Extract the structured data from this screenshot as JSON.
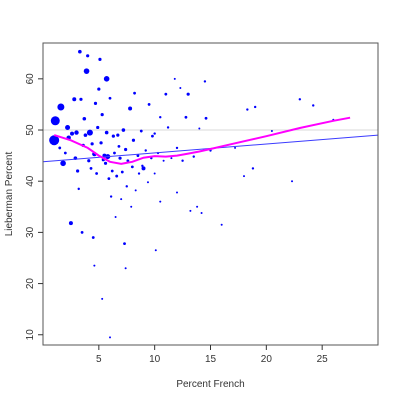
{
  "chart_data": {
    "type": "scatter",
    "xlabel": "Percent French",
    "ylabel": "Lieberman Percent",
    "xlim": [
      0,
      30
    ],
    "ylim": [
      8,
      67
    ],
    "x_ticks": [
      5,
      10,
      15,
      20,
      25
    ],
    "y_ticks": [
      10,
      20,
      30,
      40,
      50,
      60
    ],
    "x_tick_labels": [
      "5",
      "10",
      "15",
      "20",
      "25"
    ],
    "y_tick_labels": [
      "10",
      "20",
      "30",
      "40",
      "50",
      "60"
    ],
    "grid": false,
    "reference_line": {
      "y": 50,
      "color": "#d9d9d9"
    },
    "colors": {
      "points": "#0000ff",
      "regression": "#3b3bff",
      "smooth": "#ff00ff",
      "frame": "#555555"
    },
    "points": [
      {
        "x": 1.0,
        "y": 48.0,
        "w": 5.0
      },
      {
        "x": 1.1,
        "y": 51.8,
        "w": 4.5
      },
      {
        "x": 1.6,
        "y": 54.5,
        "w": 3.5
      },
      {
        "x": 1.8,
        "y": 43.5,
        "w": 2.8
      },
      {
        "x": 2.2,
        "y": 50.5,
        "w": 2.5
      },
      {
        "x": 2.3,
        "y": 48.5,
        "w": 2.2
      },
      {
        "x": 2.5,
        "y": 31.8,
        "w": 2.0
      },
      {
        "x": 2.6,
        "y": 49.3,
        "w": 2.0
      },
      {
        "x": 2.8,
        "y": 56.0,
        "w": 2.0
      },
      {
        "x": 2.9,
        "y": 44.5,
        "w": 1.8
      },
      {
        "x": 3.0,
        "y": 49.5,
        "w": 2.2
      },
      {
        "x": 3.1,
        "y": 42.0,
        "w": 1.6
      },
      {
        "x": 3.3,
        "y": 65.3,
        "w": 1.8
      },
      {
        "x": 3.4,
        "y": 56.0,
        "w": 1.6
      },
      {
        "x": 3.5,
        "y": 30.0,
        "w": 1.4
      },
      {
        "x": 3.6,
        "y": 47.0,
        "w": 1.6
      },
      {
        "x": 3.7,
        "y": 52.2,
        "w": 1.8
      },
      {
        "x": 3.8,
        "y": 49.0,
        "w": 1.8
      },
      {
        "x": 3.9,
        "y": 61.5,
        "w": 2.8
      },
      {
        "x": 4.0,
        "y": 64.5,
        "w": 1.6
      },
      {
        "x": 4.1,
        "y": 44.0,
        "w": 1.6
      },
      {
        "x": 4.2,
        "y": 49.5,
        "w": 3.0
      },
      {
        "x": 4.3,
        "y": 42.5,
        "w": 1.4
      },
      {
        "x": 4.4,
        "y": 47.3,
        "w": 1.6
      },
      {
        "x": 4.5,
        "y": 29.0,
        "w": 1.4
      },
      {
        "x": 4.6,
        "y": 45.3,
        "w": 2.2
      },
      {
        "x": 4.7,
        "y": 55.2,
        "w": 1.6
      },
      {
        "x": 4.8,
        "y": 41.5,
        "w": 1.4
      },
      {
        "x": 4.9,
        "y": 50.5,
        "w": 1.6
      },
      {
        "x": 5.0,
        "y": 58.0,
        "w": 1.6
      },
      {
        "x": 5.1,
        "y": 63.8,
        "w": 1.6
      },
      {
        "x": 5.2,
        "y": 47.5,
        "w": 1.6
      },
      {
        "x": 5.3,
        "y": 53.0,
        "w": 1.6
      },
      {
        "x": 5.4,
        "y": 44.2,
        "w": 1.6
      },
      {
        "x": 5.5,
        "y": 45.0,
        "w": 2.0
      },
      {
        "x": 5.6,
        "y": 43.5,
        "w": 1.6
      },
      {
        "x": 5.7,
        "y": 60.0,
        "w": 2.8
      },
      {
        "x": 5.7,
        "y": 49.5,
        "w": 1.8
      },
      {
        "x": 5.8,
        "y": 44.8,
        "w": 2.5
      },
      {
        "x": 5.9,
        "y": 40.5,
        "w": 1.4
      },
      {
        "x": 6.0,
        "y": 56.2,
        "w": 1.4
      },
      {
        "x": 6.1,
        "y": 37.0,
        "w": 1.2
      },
      {
        "x": 6.2,
        "y": 42.0,
        "w": 1.4
      },
      {
        "x": 6.3,
        "y": 48.8,
        "w": 1.6
      },
      {
        "x": 6.4,
        "y": 45.5,
        "w": 1.4
      },
      {
        "x": 6.5,
        "y": 33.0,
        "w": 1.0
      },
      {
        "x": 6.6,
        "y": 41.0,
        "w": 1.4
      },
      {
        "x": 6.7,
        "y": 49.0,
        "w": 1.6
      },
      {
        "x": 6.8,
        "y": 46.8,
        "w": 1.4
      },
      {
        "x": 6.9,
        "y": 44.5,
        "w": 1.6
      },
      {
        "x": 7.0,
        "y": 36.5,
        "w": 1.0
      },
      {
        "x": 7.1,
        "y": 41.8,
        "w": 1.4
      },
      {
        "x": 7.2,
        "y": 50.0,
        "w": 1.8
      },
      {
        "x": 7.3,
        "y": 27.8,
        "w": 1.4
      },
      {
        "x": 7.4,
        "y": 46.2,
        "w": 1.6
      },
      {
        "x": 7.5,
        "y": 39.0,
        "w": 1.2
      },
      {
        "x": 7.6,
        "y": 44.0,
        "w": 1.4
      },
      {
        "x": 7.8,
        "y": 54.2,
        "w": 2.0
      },
      {
        "x": 7.9,
        "y": 35.0,
        "w": 1.0
      },
      {
        "x": 8.0,
        "y": 42.8,
        "w": 1.4
      },
      {
        "x": 8.1,
        "y": 48.0,
        "w": 1.6
      },
      {
        "x": 8.2,
        "y": 57.2,
        "w": 1.4
      },
      {
        "x": 8.3,
        "y": 38.2,
        "w": 1.0
      },
      {
        "x": 8.5,
        "y": 45.0,
        "w": 1.4
      },
      {
        "x": 8.6,
        "y": 41.5,
        "w": 1.2
      },
      {
        "x": 8.8,
        "y": 49.8,
        "w": 1.4
      },
      {
        "x": 8.9,
        "y": 43.0,
        "w": 1.2
      },
      {
        "x": 9.0,
        "y": 42.5,
        "w": 2.0
      },
      {
        "x": 9.2,
        "y": 46.0,
        "w": 1.2
      },
      {
        "x": 9.4,
        "y": 39.8,
        "w": 1.0
      },
      {
        "x": 9.5,
        "y": 55.0,
        "w": 1.4
      },
      {
        "x": 9.7,
        "y": 44.5,
        "w": 1.2
      },
      {
        "x": 9.8,
        "y": 48.8,
        "w": 1.4
      },
      {
        "x": 10.0,
        "y": 41.5,
        "w": 1.0
      },
      {
        "x": 10.0,
        "y": 49.3,
        "w": 1.2
      },
      {
        "x": 10.3,
        "y": 45.5,
        "w": 1.2
      },
      {
        "x": 10.5,
        "y": 36.0,
        "w": 1.0
      },
      {
        "x": 10.5,
        "y": 52.5,
        "w": 1.2
      },
      {
        "x": 10.8,
        "y": 44.0,
        "w": 1.0
      },
      {
        "x": 11.0,
        "y": 57.0,
        "w": 1.4
      },
      {
        "x": 11.2,
        "y": 50.5,
        "w": 1.2
      },
      {
        "x": 11.5,
        "y": 44.5,
        "w": 1.0
      },
      {
        "x": 11.8,
        "y": 60.0,
        "w": 1.0
      },
      {
        "x": 12.0,
        "y": 46.5,
        "w": 1.2
      },
      {
        "x": 12.0,
        "y": 37.8,
        "w": 1.0
      },
      {
        "x": 12.3,
        "y": 58.2,
        "w": 1.0
      },
      {
        "x": 12.5,
        "y": 44.0,
        "w": 1.2
      },
      {
        "x": 12.8,
        "y": 52.5,
        "w": 1.4
      },
      {
        "x": 13.0,
        "y": 57.0,
        "w": 1.6
      },
      {
        "x": 13.2,
        "y": 34.2,
        "w": 1.0
      },
      {
        "x": 13.5,
        "y": 44.8,
        "w": 1.2
      },
      {
        "x": 13.8,
        "y": 35.0,
        "w": 1.0
      },
      {
        "x": 14.0,
        "y": 50.3,
        "w": 1.0
      },
      {
        "x": 14.2,
        "y": 33.8,
        "w": 1.0
      },
      {
        "x": 14.5,
        "y": 59.5,
        "w": 1.2
      },
      {
        "x": 14.6,
        "y": 52.3,
        "w": 1.4
      },
      {
        "x": 15.0,
        "y": 46.0,
        "w": 1.2
      },
      {
        "x": 16.0,
        "y": 31.5,
        "w": 1.0
      },
      {
        "x": 17.2,
        "y": 46.5,
        "w": 1.0
      },
      {
        "x": 18.0,
        "y": 41.0,
        "w": 1.0
      },
      {
        "x": 18.3,
        "y": 54.0,
        "w": 1.2
      },
      {
        "x": 18.8,
        "y": 42.5,
        "w": 1.2
      },
      {
        "x": 19.0,
        "y": 54.5,
        "w": 1.2
      },
      {
        "x": 20.5,
        "y": 49.8,
        "w": 1.0
      },
      {
        "x": 22.3,
        "y": 40.0,
        "w": 1.0
      },
      {
        "x": 23.0,
        "y": 56.0,
        "w": 1.2
      },
      {
        "x": 24.2,
        "y": 54.8,
        "w": 1.2
      },
      {
        "x": 26.0,
        "y": 52.0,
        "w": 1.0
      },
      {
        "x": 1.5,
        "y": 46.5,
        "w": 1.4
      },
      {
        "x": 2.0,
        "y": 45.5,
        "w": 1.4
      },
      {
        "x": 3.2,
        "y": 38.5,
        "w": 1.2
      },
      {
        "x": 5.3,
        "y": 17.0,
        "w": 1.0
      },
      {
        "x": 4.6,
        "y": 23.5,
        "w": 1.0
      },
      {
        "x": 6.0,
        "y": 9.5,
        "w": 1.0
      },
      {
        "x": 10.1,
        "y": 26.5,
        "w": 1.0
      },
      {
        "x": 7.4,
        "y": 23.0,
        "w": 1.0
      }
    ],
    "regression_line": [
      {
        "x": 0,
        "y": 43.8
      },
      {
        "x": 30,
        "y": 49.0
      }
    ],
    "smooth_curve": [
      {
        "x": 1.0,
        "y": 49.0
      },
      {
        "x": 2.5,
        "y": 48.0
      },
      {
        "x": 4.0,
        "y": 46.5
      },
      {
        "x": 5.0,
        "y": 45.0
      },
      {
        "x": 6.0,
        "y": 43.8
      },
      {
        "x": 7.0,
        "y": 43.4
      },
      {
        "x": 8.0,
        "y": 43.8
      },
      {
        "x": 9.0,
        "y": 44.6
      },
      {
        "x": 10.0,
        "y": 44.9
      },
      {
        "x": 11.0,
        "y": 44.8
      },
      {
        "x": 12.0,
        "y": 45.0
      },
      {
        "x": 13.0,
        "y": 45.4
      },
      {
        "x": 14.0,
        "y": 45.8
      },
      {
        "x": 15.0,
        "y": 46.3
      },
      {
        "x": 17.0,
        "y": 47.3
      },
      {
        "x": 20.0,
        "y": 48.8
      },
      {
        "x": 23.0,
        "y": 50.4
      },
      {
        "x": 26.0,
        "y": 51.8
      },
      {
        "x": 27.5,
        "y": 52.4
      }
    ]
  }
}
